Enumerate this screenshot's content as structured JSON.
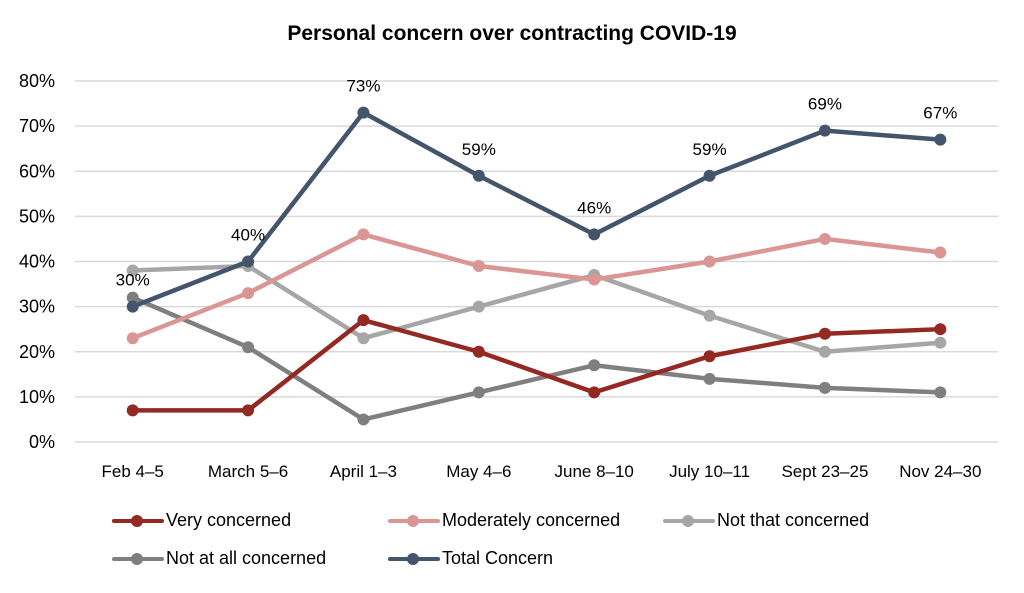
{
  "chart_data": {
    "type": "line",
    "title": "Personal concern over contracting COVID-19",
    "xlabel": "",
    "ylabel": "",
    "categories": [
      "Feb 4–5",
      "March 5–6",
      "April 1–3",
      "May 4–6",
      "June 8–10",
      "July 10–11",
      "Sept 23–25",
      "Nov 24–30"
    ],
    "ylim": [
      0,
      80
    ],
    "y_ticks": [
      0,
      10,
      20,
      30,
      40,
      50,
      60,
      70,
      80
    ],
    "y_tick_labels": [
      "0%",
      "10%",
      "20%",
      "30%",
      "40%",
      "50%",
      "60%",
      "70%",
      "80%"
    ],
    "grid": true,
    "legend_position": "bottom",
    "series": [
      {
        "name": "Very concerned",
        "color": "#942823",
        "values": [
          7,
          7,
          27,
          20,
          11,
          19,
          24,
          25
        ],
        "show_labels": false
      },
      {
        "name": "Moderately concerned",
        "color": "#DA9694",
        "values": [
          23,
          33,
          46,
          39,
          36,
          40,
          45,
          42
        ],
        "show_labels": false
      },
      {
        "name": "Not that concerned",
        "color": "#A6A6A6",
        "values": [
          38,
          39,
          23,
          30,
          37,
          28,
          20,
          22
        ],
        "show_labels": false
      },
      {
        "name": "Not at all concerned",
        "color": "#7F7F7F",
        "values": [
          32,
          21,
          5,
          11,
          17,
          14,
          12,
          11
        ],
        "show_labels": false
      },
      {
        "name": "Total Concern",
        "color": "#44546A",
        "values": [
          30,
          40,
          73,
          59,
          46,
          59,
          69,
          67
        ],
        "show_labels": true,
        "data_labels": [
          "30%",
          "40%",
          "73%",
          "59%",
          "46%",
          "59%",
          "69%",
          "67%"
        ]
      }
    ]
  }
}
